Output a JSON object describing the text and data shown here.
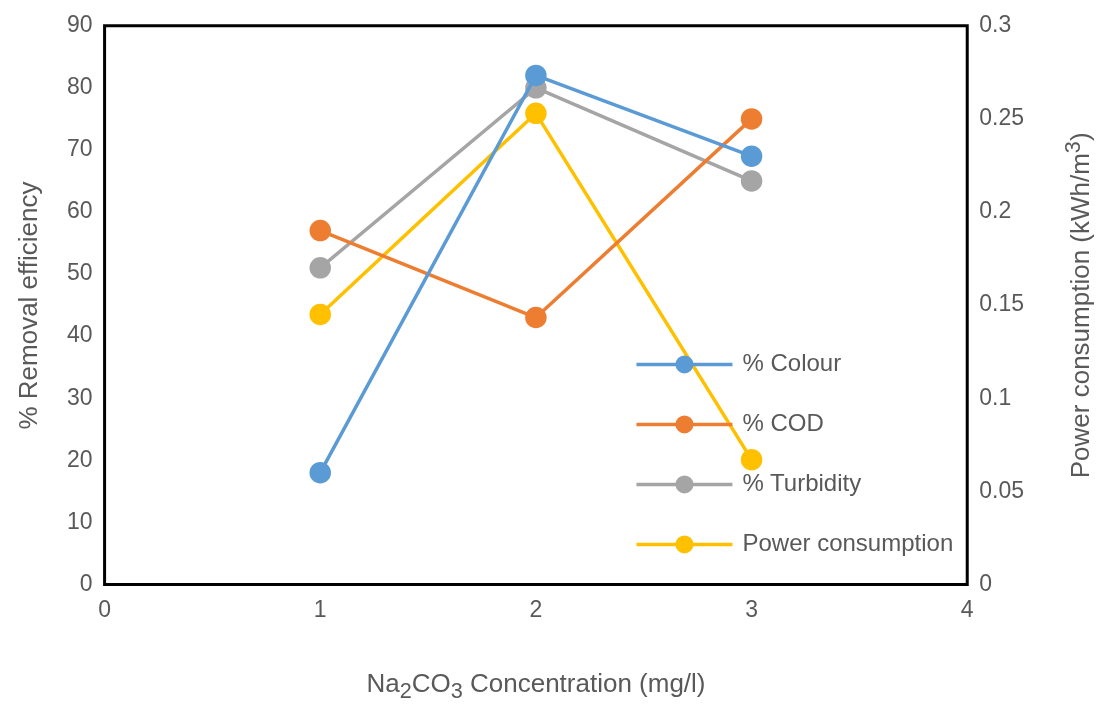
{
  "chart_data": {
    "type": "line",
    "xlabel": "Na$_{2}$CO$_{3}$ Concentration (mg/l)",
    "ylabel": "% Removal efficiency",
    "y2label": "Power consumption (kWh/m$^{3}$)",
    "x": [
      1,
      2,
      3
    ],
    "series": [
      {
        "name": "% Colour",
        "color": "#5b9bd5",
        "values": [
          18,
          82,
          69
        ]
      },
      {
        "name": "% COD",
        "color": "#ed7d31",
        "values": [
          57,
          43,
          75
        ]
      },
      {
        "name": "% Turbidity",
        "color": "#a5a5a5",
        "values": [
          51,
          80,
          65
        ]
      },
      {
        "name": "Power consumption",
        "color": "#ffc000",
        "values": [
          0.145,
          0.253,
          0.067
        ],
        "axis": "y2"
      }
    ],
    "xlim": [
      0,
      4
    ],
    "xticks": [
      0,
      1,
      2,
      3,
      4
    ],
    "ylim": [
      0,
      90
    ],
    "yticks": [
      0,
      10,
      20,
      30,
      40,
      50,
      60,
      70,
      80,
      90
    ],
    "y2lim": [
      0,
      0.3
    ],
    "y2ticks": [
      0,
      0.05,
      0.1,
      0.15,
      0.2,
      0.25,
      0.3
    ],
    "grid": false,
    "legend": "bottom right",
    "marker": "circle",
    "line_style": "solid"
  }
}
